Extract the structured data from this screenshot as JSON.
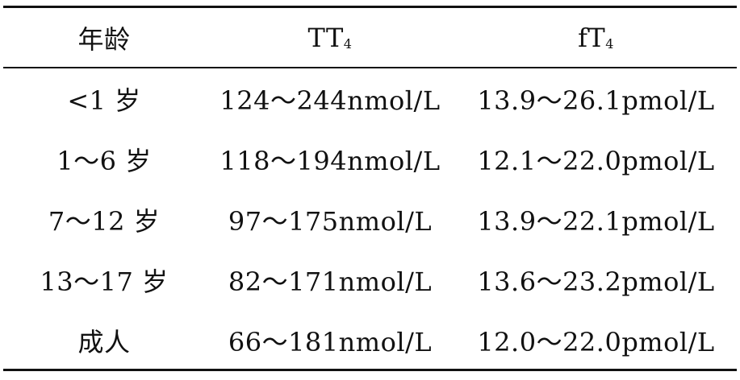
{
  "table": {
    "headers": [
      {
        "main": "年龄",
        "sub": ""
      },
      {
        "main": "TT",
        "sub": "4"
      },
      {
        "main": "fT",
        "sub": "4"
      }
    ],
    "rows": [
      [
        "<1 岁",
        "124～244nmol/L",
        "13.9～26.1pmol/L"
      ],
      [
        "1～6 岁",
        "118～194nmol/L",
        "12.1～22.0pmol/L"
      ],
      [
        "7～12 岁",
        "97～175nmol/L",
        "13.9～22.1pmol/L"
      ],
      [
        "13～17 岁",
        "82～171nmol/L",
        "13.6～23.2pmol/L"
      ],
      [
        "成人",
        "66～181nmol/L",
        "12.0～22.0pmol/L"
      ]
    ]
  }
}
